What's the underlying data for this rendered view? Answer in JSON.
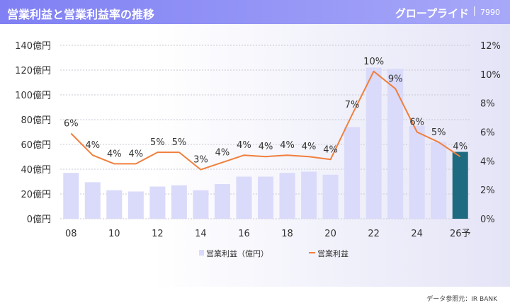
{
  "header": {
    "title": "営業利益と営業利益率の推移",
    "company": "グロープライド",
    "separator": "|",
    "code": "7990"
  },
  "source": "データ参照元：IR BANK",
  "colors": {
    "bar": "#dadafa",
    "bar_forecast": "#1e6a80",
    "line": "#f07f3c",
    "header_start": "#8080f4",
    "header_end": "#a7a8f8"
  },
  "chart_data": {
    "type": "bar+line",
    "categories": [
      "08",
      "09",
      "10",
      "11",
      "12",
      "13",
      "14",
      "15",
      "16",
      "17",
      "18",
      "19",
      "20",
      "21",
      "22",
      "23",
      "24",
      "25",
      "26予"
    ],
    "x_tick_labels": [
      "08",
      "10",
      "12",
      "14",
      "16",
      "18",
      "20",
      "22",
      "24",
      "26予"
    ],
    "series": [
      {
        "name": "営業利益（億円）",
        "type": "bar",
        "axis": "left",
        "values": [
          37,
          29.5,
          23,
          22,
          26,
          27,
          23,
          28,
          34,
          34,
          37,
          38,
          35.5,
          74,
          122,
          121,
          75,
          62,
          54
        ],
        "forecast_index": 18
      },
      {
        "name": "営業利益",
        "type": "line",
        "axis": "right",
        "values": [
          5.9,
          4.4,
          3.8,
          3.8,
          4.6,
          4.6,
          3.4,
          3.9,
          4.4,
          4.3,
          4.4,
          4.3,
          4.1,
          7.2,
          10.2,
          9.0,
          6.0,
          5.3,
          4.3
        ],
        "labels": [
          "6%",
          "4%",
          "4%",
          "4%",
          "5%",
          "5%",
          "3%",
          "4%",
          "4%",
          "4%",
          "4%",
          "4%",
          "4%",
          "7%",
          "10%",
          "9%",
          "6%",
          "5%",
          "4%"
        ]
      }
    ],
    "y_left": {
      "min": 0,
      "max": 140,
      "step": 20,
      "unit": "億円",
      "ticks": [
        "0億円",
        "20億円",
        "40億円",
        "60億円",
        "80億円",
        "100億円",
        "120億円",
        "140億円"
      ]
    },
    "y_right": {
      "min": 0,
      "max": 12,
      "step": 2,
      "ticks": [
        "0%",
        "2%",
        "4%",
        "6%",
        "8%",
        "10%",
        "12%"
      ]
    },
    "legend": [
      {
        "label": "営業利益（億円）",
        "kind": "bar"
      },
      {
        "label": "営業利益",
        "kind": "line"
      }
    ],
    "grid": "horizontal dotted",
    "legend_position": "bottom-center"
  }
}
